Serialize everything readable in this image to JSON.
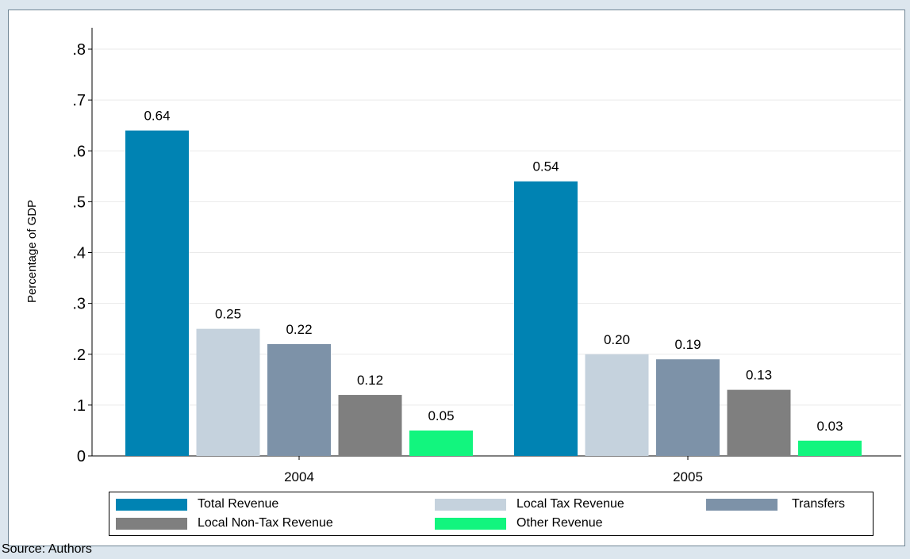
{
  "chart_data": {
    "type": "bar",
    "categories": [
      "2004",
      "2005"
    ],
    "series": [
      {
        "name": "Total Revenue",
        "color": "#0083b3",
        "values": [
          0.64,
          0.54
        ],
        "labels": [
          "0.64",
          "0.54"
        ]
      },
      {
        "name": "Local Tax Revenue",
        "color": "#c5d2dd",
        "values": [
          0.25,
          0.2
        ],
        "labels": [
          "0.25",
          "0.20"
        ]
      },
      {
        "name": "Transfers",
        "color": "#7d92a8",
        "values": [
          0.22,
          0.19
        ],
        "labels": [
          "0.22",
          "0.19"
        ]
      },
      {
        "name": "Local Non-Tax Revenue",
        "color": "#7f7f7f",
        "values": [
          0.12,
          0.13
        ],
        "labels": [
          "0.12",
          "0.13"
        ]
      },
      {
        "name": "Other Revenue",
        "color": "#12f57e",
        "values": [
          0.05,
          0.03
        ],
        "labels": [
          "0.05",
          "0.03"
        ]
      }
    ],
    "ylabel": "Percentage of GDP",
    "xlabel": "",
    "ylim": [
      0,
      0.8
    ],
    "yticks": [
      0,
      0.1,
      0.2,
      0.3,
      0.4,
      0.5,
      0.6,
      0.7,
      0.8
    ],
    "ytick_labels": [
      "0",
      ".1",
      ".2",
      ".3",
      ".4",
      ".5",
      ".6",
      ".7",
      ".8"
    ],
    "grid": true,
    "legend_position": "bottom"
  },
  "source_note": "Source: Authors"
}
